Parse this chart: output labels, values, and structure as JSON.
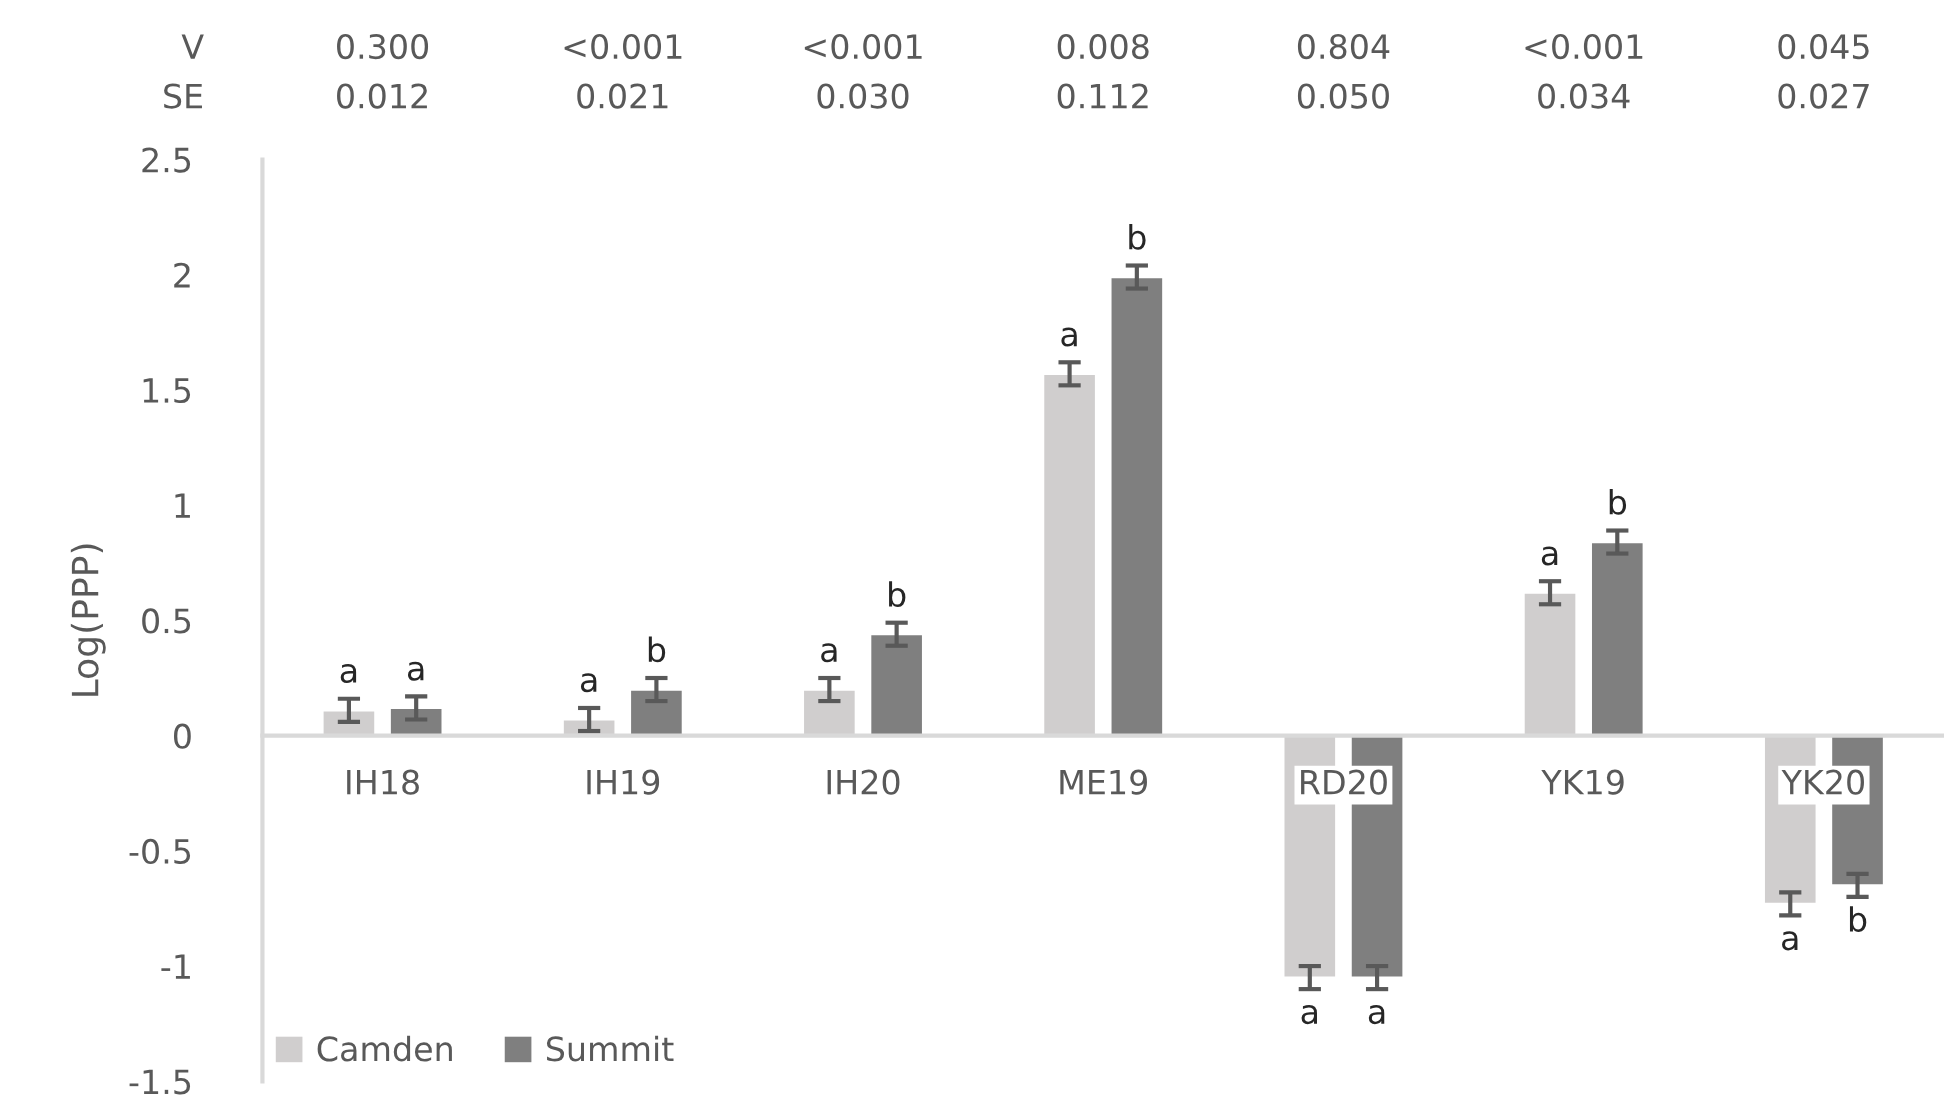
{
  "chart_data": {
    "type": "bar",
    "ylabel": "Log(PPP)",
    "categories": [
      "IH18",
      "IH19",
      "IH20",
      "ME19",
      "RD20",
      "YK19",
      "YK20"
    ],
    "series": [
      {
        "name": "Camden",
        "color": "#d0cece",
        "values": [
          0.11,
          0.07,
          0.2,
          1.57,
          -1.05,
          0.62,
          -0.73
        ],
        "errors": [
          0.05,
          0.05,
          0.05,
          0.05,
          0.05,
          0.05,
          0.05
        ],
        "value_labels": [
          "a",
          "a",
          "a",
          "a",
          "a",
          "a",
          "a"
        ]
      },
      {
        "name": "Summit",
        "color": "#7f7f7f",
        "values": [
          0.12,
          0.2,
          0.44,
          1.99,
          -1.05,
          0.84,
          -0.65
        ],
        "errors": [
          0.05,
          0.05,
          0.05,
          0.05,
          0.05,
          0.05,
          0.05
        ],
        "value_labels": [
          "a",
          "b",
          "b",
          "b",
          "a",
          "b",
          "b"
        ]
      }
    ],
    "ylim": [
      -1.5,
      2.5
    ],
    "yticks": [
      -1.5,
      -1,
      -0.5,
      0,
      0.5,
      1,
      1.5,
      2,
      2.5
    ],
    "grid": false,
    "legend": "bottom left",
    "annotations": [
      "V",
      "0.300",
      "<0.001",
      "<0.001",
      "0.008",
      "0.804",
      "<0.001",
      "0.045",
      "SE",
      "0.012",
      "0.021",
      "0.030",
      "0.112",
      "0.050",
      "0.034",
      "0.027"
    ]
  }
}
